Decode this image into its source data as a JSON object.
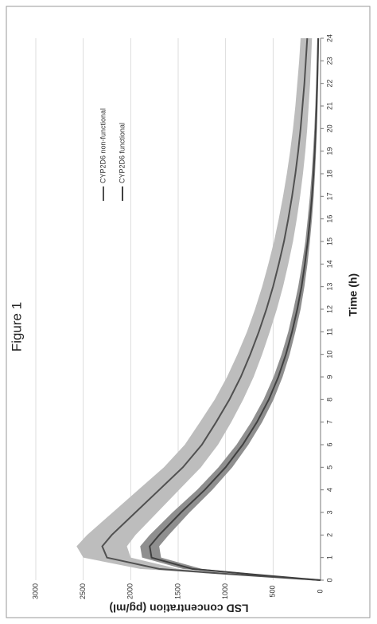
{
  "chart_data": {
    "type": "line",
    "title": "Figure 1",
    "x_label": "Time (h)",
    "y_label": "LSD concentration (pg/ml)",
    "x": [
      0,
      0.25,
      0.5,
      1,
      1.5,
      2,
      3,
      4,
      5,
      6,
      7,
      8,
      9,
      10,
      11,
      12,
      13,
      14,
      15,
      16,
      17,
      18,
      19,
      20,
      21,
      22,
      23,
      24
    ],
    "series": [
      {
        "name": "CYP2D6 non-functional",
        "color": "#505050",
        "band_color": "#bdbdbd",
        "values": [
          0,
          900,
          1700,
          2250,
          2300,
          2200,
          1950,
          1700,
          1450,
          1250,
          1100,
          960,
          840,
          740,
          650,
          570,
          500,
          440,
          385,
          340,
          300,
          265,
          235,
          210,
          190,
          170,
          155,
          140
        ],
        "upper": [
          0,
          1000,
          1900,
          2500,
          2570,
          2460,
          2190,
          1920,
          1650,
          1430,
          1270,
          1115,
          985,
          875,
          775,
          690,
          615,
          550,
          490,
          440,
          395,
          355,
          320,
          290,
          265,
          245,
          225,
          210
        ],
        "lower": [
          0,
          800,
          1500,
          2000,
          2040,
          1950,
          1720,
          1490,
          1260,
          1080,
          940,
          815,
          705,
          615,
          535,
          460,
          395,
          340,
          290,
          250,
          215,
          185,
          160,
          140,
          125,
          110,
          100,
          90
        ]
      },
      {
        "name": "CYP2D6 functional",
        "color": "#404040",
        "band_color": "#8f8f8f",
        "values": [
          0,
          700,
          1350,
          1780,
          1800,
          1700,
          1470,
          1220,
          1000,
          820,
          670,
          545,
          445,
          365,
          300,
          245,
          200,
          165,
          135,
          110,
          90,
          74,
          61,
          50,
          42,
          35,
          29,
          24
        ],
        "upper": [
          0,
          760,
          1450,
          1880,
          1900,
          1800,
          1560,
          1300,
          1075,
          885,
          730,
          600,
          495,
          410,
          340,
          285,
          235,
          195,
          160,
          135,
          112,
          93,
          78,
          65,
          55,
          47,
          40,
          34
        ],
        "lower": [
          0,
          640,
          1250,
          1680,
          1700,
          1600,
          1380,
          1140,
          930,
          760,
          615,
          495,
          400,
          325,
          265,
          210,
          170,
          138,
          112,
          90,
          72,
          58,
          47,
          38,
          31,
          25,
          20,
          16
        ]
      }
    ],
    "xlim": [
      0,
      24
    ],
    "xticks": [
      0,
      1,
      2,
      3,
      4,
      5,
      6,
      7,
      8,
      9,
      10,
      11,
      12,
      13,
      14,
      15,
      16,
      17,
      18,
      19,
      20,
      21,
      22,
      23,
      24
    ],
    "ylim": [
      0,
      3000
    ],
    "yticks": [
      0,
      500,
      1000,
      1500,
      2000,
      2500,
      3000
    ],
    "grid": true
  }
}
